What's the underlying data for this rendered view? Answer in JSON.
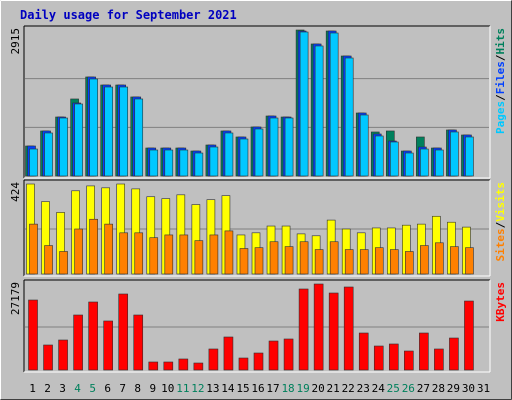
{
  "title": "Daily usage for September 2021",
  "categories": [
    "1",
    "2",
    "3",
    "4",
    "5",
    "6",
    "7",
    "8",
    "9",
    "10",
    "11",
    "12",
    "13",
    "14",
    "15",
    "16",
    "17",
    "18",
    "19",
    "20",
    "21",
    "22",
    "23",
    "24",
    "25",
    "26",
    "27",
    "28",
    "29",
    "30",
    "31"
  ],
  "category_colors": [
    "#000000",
    "#000000",
    "#000000",
    "#00805c",
    "#00805c",
    "#000000",
    "#000000",
    "#000000",
    "#000000",
    "#000000",
    "#00805c",
    "#00805c",
    "#000000",
    "#000000",
    "#000000",
    "#000000",
    "#000000",
    "#00805c",
    "#00805c",
    "#000000",
    "#000000",
    "#000000",
    "#000000",
    "#000000",
    "#00805c",
    "#00805c",
    "#000000",
    "#000000",
    "#000000",
    "#000000",
    "#000000"
  ],
  "separator": "/",
  "chart_data": [
    {
      "type": "bar",
      "ylim": [
        0,
        2915
      ],
      "yticks": [
        2915
      ],
      "series": [
        {
          "name": "Hits",
          "color": "#00805c",
          "values": [
            599,
            899,
            1178,
            1538,
            1977,
            1817,
            1817,
            1578,
            559,
            559,
            559,
            499,
            619,
            899,
            779,
            979,
            1198,
            1178,
            2915,
            2636,
            2895,
            2396,
            1258,
            879,
            899,
            499,
            779,
            559,
            919,
            819,
            null
          ]
        },
        {
          "name": "Files",
          "color": "#0040ff",
          "values": [
            599,
            899,
            1178,
            1458,
            1977,
            1817,
            1817,
            1578,
            559,
            559,
            559,
            499,
            619,
            899,
            779,
            979,
            1198,
            1178,
            2895,
            2636,
            2895,
            2396,
            1258,
            839,
            699,
            499,
            579,
            559,
            919,
            819,
            null
          ]
        },
        {
          "name": "Pages",
          "color": "#00c8ff",
          "values": [
            539,
            859,
            1158,
            1438,
            1937,
            1777,
            1777,
            1538,
            519,
            519,
            519,
            459,
            579,
            859,
            739,
            939,
            1158,
            1158,
            2875,
            2596,
            2855,
            2356,
            1218,
            799,
            679,
            459,
            539,
            519,
            879,
            779,
            null
          ]
        }
      ]
    },
    {
      "type": "bar",
      "ylim": [
        0,
        424
      ],
      "yticks": [
        424
      ],
      "series": [
        {
          "name": "Visits",
          "color": "#ffff00",
          "values": [
            424,
            341,
            290,
            392,
            415,
            406,
            424,
            401,
            364,
            355,
            373,
            327,
            350,
            369,
            184,
            194,
            226,
            226,
            189,
            180,
            254,
            212,
            194,
            217,
            217,
            230,
            235,
            272,
            244,
            221,
            null
          ]
        },
        {
          "name": "Sites",
          "color": "#ff8000",
          "values": [
            235,
            134,
            106,
            212,
            258,
            235,
            194,
            194,
            171,
            184,
            184,
            157,
            184,
            203,
            120,
            124,
            152,
            129,
            152,
            115,
            152,
            115,
            115,
            124,
            115,
            106,
            134,
            147,
            129,
            124,
            null
          ]
        }
      ]
    },
    {
      "type": "bar",
      "ylim": [
        0,
        27179
      ],
      "yticks": [
        27179
      ],
      "series": [
        {
          "name": "KBytes",
          "color": "#ff0000",
          "values": [
            22120,
            7900,
            9480,
            17380,
            21490,
            15490,
            24020,
            17380,
            2530,
            2530,
            3480,
            2210,
            6640,
            10430,
            3790,
            5370,
            9160,
            9800,
            25600,
            27179,
            24330,
            26230,
            11690,
            7580,
            8220,
            6000,
            11690,
            6640,
            10110,
            21800,
            null
          ]
        }
      ]
    }
  ]
}
